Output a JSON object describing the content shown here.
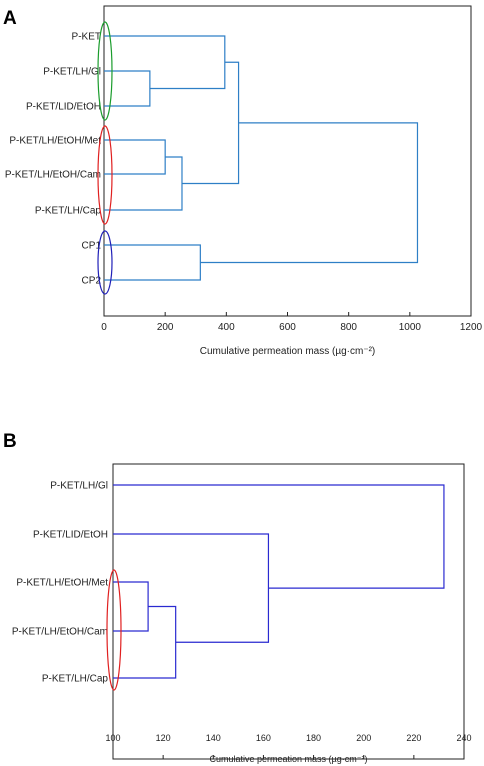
{
  "chart_data": [
    {
      "type": "dendrogram",
      "panel": "A",
      "leaves": [
        "P-KET",
        "P-KET/LH/Gl",
        "P-KET/LID/EtOH",
        "P-KET/LH/EtOH/Met",
        "P-KET/LH/EtOH/Cam",
        "P-KET/LH/Cap",
        "CP1",
        "CP2"
      ],
      "merges": [
        {
          "a": "leaf:1",
          "b": "leaf:2",
          "height": 150
        },
        {
          "a": "leaf:0",
          "b": "node:0",
          "height": 395
        },
        {
          "a": "leaf:3",
          "b": "leaf:4",
          "height": 200
        },
        {
          "a": "node:2",
          "b": "leaf:5",
          "height": 255
        },
        {
          "a": "node:1",
          "b": "node:3",
          "height": 440
        },
        {
          "a": "leaf:6",
          "b": "leaf:7",
          "height": 315
        },
        {
          "a": "node:4",
          "b": "node:5",
          "height": 1025
        }
      ],
      "xlim": [
        0,
        1200
      ],
      "xticks": [
        0,
        200,
        400,
        600,
        800,
        1000,
        1200
      ],
      "xlabel": "Cumulative permeation mass (µg·cm⁻²)",
      "line_color": "#2e7fc6",
      "ellipses": [
        {
          "color": "#1a9c2c",
          "from_leaf": 0,
          "to_leaf": 2
        },
        {
          "color": "#e02020",
          "from_leaf": 3,
          "to_leaf": 5
        },
        {
          "color": "#2020b8",
          "from_leaf": 6,
          "to_leaf": 7
        }
      ]
    },
    {
      "type": "dendrogram",
      "panel": "B",
      "leaves": [
        "P-KET/LH/Gl",
        "P-KET/LID/EtOH",
        "P-KET/LH/EtOH/Met",
        "P-KET/LH/EtOH/Cam",
        "P-KET/LH/Cap"
      ],
      "merges": [
        {
          "a": "leaf:2",
          "b": "leaf:3",
          "height": 114
        },
        {
          "a": "node:0",
          "b": "leaf:4",
          "height": 125
        },
        {
          "a": "leaf:1",
          "b": "node:1",
          "height": 162
        },
        {
          "a": "leaf:0",
          "b": "node:2",
          "height": 232
        }
      ],
      "xlim": [
        100,
        240
      ],
      "xticks": [
        100,
        120,
        140,
        160,
        180,
        200,
        220,
        240
      ],
      "xlabel": "Cumulative permeation mass (µg·cm⁻²)",
      "line_color": "#2a2ad0",
      "ellipses": [
        {
          "color": "#e02020",
          "from_leaf": 2,
          "to_leaf": 4
        }
      ]
    }
  ]
}
